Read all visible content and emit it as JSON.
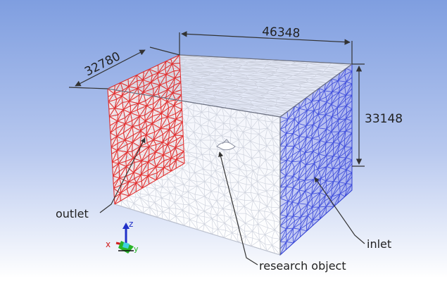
{
  "dimensions": {
    "depth": "32780",
    "width": "46348",
    "height": "33148"
  },
  "labels": {
    "outlet": "outlet",
    "inlet": "inlet",
    "research_object": "research object"
  },
  "triad": {
    "x": "x",
    "y": "y",
    "z": "z"
  },
  "colors": {
    "background_top": "#7f9ee0",
    "background_bottom": "#ffffff",
    "outlet_mesh": "#e02020",
    "inlet_mesh": "#3040d8",
    "mesh": "#c8ccd8"
  }
}
